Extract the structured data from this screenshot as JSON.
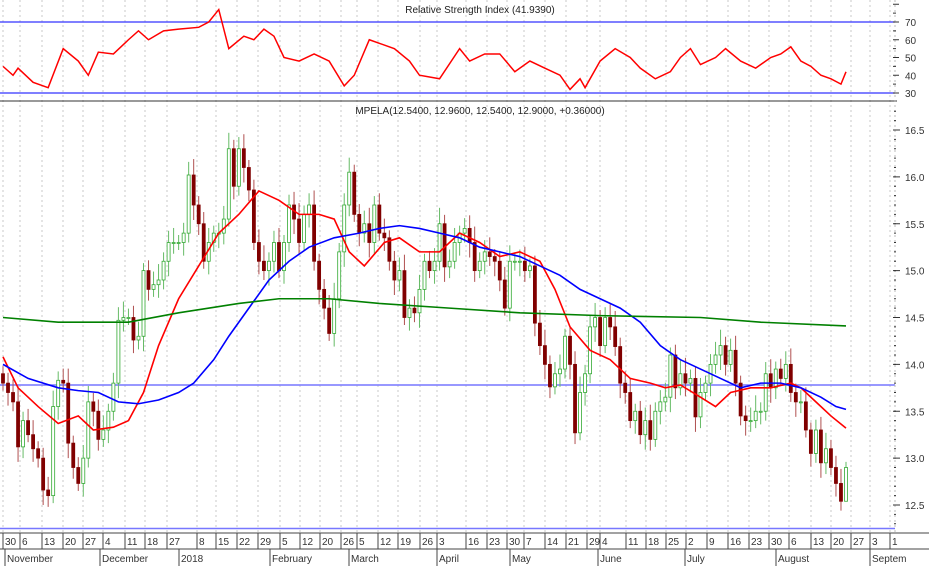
{
  "chart_data": [
    {
      "type": "line",
      "title": "Relative Strength Index",
      "current_value": "(41.9390)",
      "ylim": [
        25,
        80
      ],
      "y_ticks": [
        "70",
        "60",
        "50",
        "40",
        "30"
      ],
      "y_tick_values": [
        70,
        60,
        50,
        40,
        30
      ],
      "reference_lines": [
        70,
        30
      ],
      "series": [
        {
          "name": "RSI",
          "color": "#ff0000",
          "points": [
            [
              0,
              45
            ],
            [
              2,
              40
            ],
            [
              3,
              44
            ],
            [
              6,
              36
            ],
            [
              9,
              33
            ],
            [
              12,
              55
            ],
            [
              15,
              48
            ],
            [
              17,
              40
            ],
            [
              19,
              53
            ],
            [
              22,
              52
            ],
            [
              25,
              60
            ],
            [
              27,
              65
            ],
            [
              29,
              60
            ],
            [
              32,
              65
            ],
            [
              35,
              66
            ],
            [
              39,
              67
            ],
            [
              41,
              70
            ],
            [
              43,
              77
            ],
            [
              45,
              55
            ],
            [
              48,
              62
            ],
            [
              50,
              60
            ],
            [
              52,
              66
            ],
            [
              54,
              62
            ],
            [
              56,
              50
            ],
            [
              59,
              48
            ],
            [
              62,
              52
            ],
            [
              65,
              48
            ],
            [
              68,
              34
            ],
            [
              70,
              40
            ],
            [
              73,
              60
            ],
            [
              75,
              58
            ],
            [
              78,
              55
            ],
            [
              81,
              48
            ],
            [
              83,
              40
            ],
            [
              87,
              38
            ],
            [
              91,
              55
            ],
            [
              93,
              48
            ],
            [
              96,
              52
            ],
            [
              99,
              52
            ],
            [
              102,
              42
            ],
            [
              105,
              48
            ],
            [
              108,
              44
            ],
            [
              111,
              40
            ],
            [
              113,
              32
            ],
            [
              115,
              38
            ],
            [
              116,
              33
            ],
            [
              119,
              48
            ],
            [
              122,
              55
            ],
            [
              125,
              50
            ],
            [
              127,
              44
            ],
            [
              130,
              38
            ],
            [
              133,
              42
            ],
            [
              135,
              50
            ],
            [
              137,
              55
            ],
            [
              139,
              46
            ],
            [
              142,
              50
            ],
            [
              144,
              55
            ],
            [
              147,
              48
            ],
            [
              150,
              44
            ],
            [
              153,
              50
            ],
            [
              155,
              52
            ],
            [
              157,
              56
            ],
            [
              159,
              48
            ],
            [
              161,
              45
            ],
            [
              163,
              40
            ],
            [
              165,
              38
            ],
            [
              167,
              35
            ],
            [
              168,
              41.939
            ]
          ]
        }
      ]
    },
    {
      "type": "candlestick",
      "title": "MPELA",
      "ohlc_label": "(12.5400, 12.9600, 12.5400, 12.9000, +0.36000)",
      "ylim": [
        12.2,
        16.85
      ],
      "y_ticks": [
        "16.5",
        "16.0",
        "15.5",
        "15.0",
        "14.5",
        "14.0",
        "13.5",
        "13.0",
        "12.5"
      ],
      "y_tick_values": [
        16.5,
        16.0,
        15.5,
        15.0,
        14.5,
        14.0,
        13.5,
        13.0,
        12.5
      ],
      "reference_lines": [
        13.78,
        12.25
      ],
      "first_open": 13.9,
      "close": [
        13.8,
        13.7,
        13.6,
        13.12,
        13.4,
        13.25,
        13.1,
        13.0,
        12.66,
        12.6,
        13.55,
        13.83,
        13.8,
        13.16,
        12.9,
        12.73,
        13.0,
        13.6,
        13.5,
        13.2,
        13.3,
        13.5,
        13.8,
        14.47,
        14.5,
        14.5,
        14.26,
        14.3,
        15.0,
        14.8,
        14.85,
        14.9,
        15.1,
        15.3,
        15.3,
        15.3,
        15.4,
        16.02,
        15.7,
        15.5,
        15.1,
        15.3,
        15.4,
        15.4,
        15.55,
        16.3,
        15.9,
        16.3,
        16.1,
        15.86,
        15.3,
        15.1,
        15.0,
        15.1,
        15.3,
        15.0,
        15.3,
        15.7,
        15.55,
        15.3,
        15.6,
        15.7,
        15.1,
        14.8,
        14.6,
        14.33,
        14.7,
        15.2,
        15.7,
        16.05,
        15.6,
        15.4,
        15.5,
        15.3,
        15.7,
        15.4,
        15.35,
        15.1,
        14.9,
        15.0,
        14.5,
        14.6,
        14.55,
        14.8,
        15.1,
        15.0,
        15.1,
        15.5,
        15.04,
        15.1,
        15.3,
        15.4,
        15.45,
        15.3,
        15.0,
        15.1,
        15.2,
        15.15,
        15.1,
        14.9,
        14.6,
        15.1,
        15.1,
        15.1,
        15.0,
        15.05,
        14.44,
        14.2,
        14.0,
        13.76,
        13.9,
        13.95,
        14.3,
        14.0,
        13.27,
        13.7,
        13.9,
        14.4,
        14.5,
        14.2,
        14.5,
        14.4,
        14.19,
        13.8,
        13.7,
        13.4,
        13.5,
        13.25,
        13.4,
        13.2,
        13.5,
        13.6,
        13.65,
        14.1,
        13.75,
        13.9,
        13.8,
        13.85,
        13.44,
        13.7,
        13.8,
        14.0,
        14.1,
        14.2,
        14.0,
        14.15,
        13.8,
        13.45,
        13.4,
        13.4,
        13.5,
        13.5,
        13.9,
        13.75,
        13.95,
        13.85,
        14.0,
        13.7,
        13.6,
        13.6,
        13.3,
        13.05,
        13.3,
        12.95,
        13.1,
        12.9,
        12.73,
        12.54,
        12.9
      ],
      "last_bar": {
        "open": 12.54,
        "high": 12.96,
        "low": 12.54,
        "close": 12.9,
        "change": 0.36
      },
      "moving_averages": [
        {
          "name": "short MA",
          "color": "#ff0000",
          "points": [
            [
              0,
              14.08
            ],
            [
              3,
              13.75
            ],
            [
              7,
              13.55
            ],
            [
              11,
              13.37
            ],
            [
              15,
              13.45
            ],
            [
              18,
              13.3
            ],
            [
              22,
              13.33
            ],
            [
              25,
              13.4
            ],
            [
              28,
              13.7
            ],
            [
              31,
              14.2
            ],
            [
              35,
              14.7
            ],
            [
              39,
              15.05
            ],
            [
              43,
              15.4
            ],
            [
              47,
              15.6
            ],
            [
              51,
              15.85
            ],
            [
              55,
              15.75
            ],
            [
              59,
              15.6
            ],
            [
              63,
              15.6
            ],
            [
              66,
              15.55
            ],
            [
              69,
              15.2
            ],
            [
              72,
              15.05
            ],
            [
              76,
              15.3
            ],
            [
              79,
              15.35
            ],
            [
              83,
              15.2
            ],
            [
              87,
              15.2
            ],
            [
              91,
              15.4
            ],
            [
              95,
              15.3
            ],
            [
              99,
              15.15
            ],
            [
              103,
              15.2
            ],
            [
              107,
              15.1
            ],
            [
              110,
              14.8
            ],
            [
              113,
              14.4
            ],
            [
              117,
              14.15
            ],
            [
              121,
              14.05
            ],
            [
              125,
              13.85
            ],
            [
              129,
              13.8
            ],
            [
              132,
              13.75
            ],
            [
              135,
              13.78
            ],
            [
              139,
              13.65
            ],
            [
              142,
              13.55
            ],
            [
              145,
              13.7
            ],
            [
              149,
              13.75
            ],
            [
              153,
              13.75
            ],
            [
              157,
              13.8
            ],
            [
              159,
              13.75
            ],
            [
              162,
              13.6
            ],
            [
              165,
              13.45
            ],
            [
              168,
              13.32
            ]
          ]
        },
        {
          "name": "medium MA",
          "color": "#0000ff",
          "points": [
            [
              0,
              14.0
            ],
            [
              5,
              13.85
            ],
            [
              11,
              13.75
            ],
            [
              15,
              13.72
            ],
            [
              19,
              13.7
            ],
            [
              23,
              13.6
            ],
            [
              27,
              13.58
            ],
            [
              31,
              13.62
            ],
            [
              35,
              13.7
            ],
            [
              38,
              13.8
            ],
            [
              42,
              14.05
            ],
            [
              45,
              14.3
            ],
            [
              49,
              14.6
            ],
            [
              53,
              14.9
            ],
            [
              57,
              15.1
            ],
            [
              61,
              15.25
            ],
            [
              66,
              15.35
            ],
            [
              71,
              15.4
            ],
            [
              75,
              15.45
            ],
            [
              79,
              15.48
            ],
            [
              83,
              15.45
            ],
            [
              87,
              15.4
            ],
            [
              91,
              15.35
            ],
            [
              95,
              15.25
            ],
            [
              99,
              15.2
            ],
            [
              103,
              15.15
            ],
            [
              107,
              15.05
            ],
            [
              111,
              14.95
            ],
            [
              115,
              14.8
            ],
            [
              119,
              14.7
            ],
            [
              123,
              14.6
            ],
            [
              127,
              14.45
            ],
            [
              131,
              14.2
            ],
            [
              135,
              14.05
            ],
            [
              139,
              13.95
            ],
            [
              143,
              13.85
            ],
            [
              147,
              13.75
            ],
            [
              151,
              13.8
            ],
            [
              155,
              13.8
            ],
            [
              159,
              13.75
            ],
            [
              163,
              13.65
            ],
            [
              166,
              13.55
            ],
            [
              168,
              13.52
            ]
          ]
        },
        {
          "name": "long MA",
          "color": "#008000",
          "points": [
            [
              0,
              14.5
            ],
            [
              11,
              14.45
            ],
            [
              25,
              14.45
            ],
            [
              35,
              14.55
            ],
            [
              47,
              14.65
            ],
            [
              55,
              14.7
            ],
            [
              65,
              14.7
            ],
            [
              75,
              14.65
            ],
            [
              89,
              14.6
            ],
            [
              103,
              14.55
            ],
            [
              119,
              14.52
            ],
            [
              139,
              14.5
            ],
            [
              151,
              14.45
            ],
            [
              168,
              14.41
            ]
          ]
        }
      ]
    }
  ],
  "x_axis": {
    "day_labels": [
      "30",
      "6",
      "13",
      "20",
      "27",
      "4",
      "11",
      "18",
      "27",
      "8",
      "15",
      "22",
      "29",
      "5",
      "12",
      "20",
      "26",
      "5",
      "12",
      "19",
      "26",
      "3",
      "16",
      "23",
      "30",
      "7",
      "14",
      "21",
      "29",
      "4",
      "11",
      "18",
      "25",
      "2",
      "9",
      "16",
      "23",
      "30",
      "6",
      "13",
      "20",
      "27",
      "3",
      "1"
    ],
    "month_labels": [
      "November",
      "December",
      "2018",
      "February",
      "March",
      "April",
      "May",
      "June",
      "July",
      "August",
      "Septem"
    ]
  }
}
